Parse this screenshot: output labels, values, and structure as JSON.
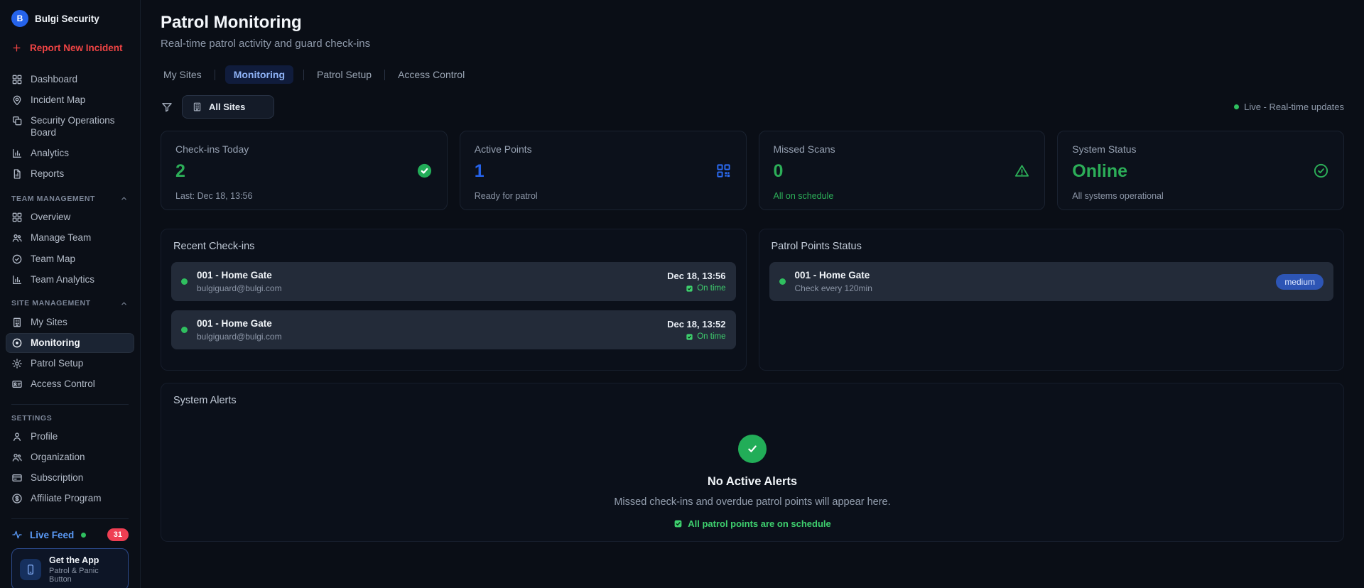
{
  "brand": {
    "name": "Bulgi Security",
    "initial": "B",
    "logo_color": "#2563eb"
  },
  "sidebar": {
    "report_button": {
      "label": "Report New Incident",
      "icon": "plus"
    },
    "primary_nav": [
      {
        "label": "Dashboard",
        "icon": "grid"
      },
      {
        "label": "Incident Map",
        "icon": "map-pin"
      },
      {
        "label": "Security Operations Board",
        "icon": "board"
      },
      {
        "label": "Analytics",
        "icon": "bar-chart"
      },
      {
        "label": "Reports",
        "icon": "file-chart"
      }
    ],
    "sections": [
      {
        "label": "TEAM MANAGEMENT",
        "collapsible": true,
        "items": [
          {
            "label": "Overview",
            "icon": "grid"
          },
          {
            "label": "Manage Team",
            "icon": "users"
          },
          {
            "label": "Team Map",
            "icon": "badge-check"
          },
          {
            "label": "Team Analytics",
            "icon": "bar-chart"
          }
        ]
      },
      {
        "label": "SITE MANAGEMENT",
        "collapsible": true,
        "divider_before": false,
        "items": [
          {
            "label": "My Sites",
            "icon": "building"
          },
          {
            "label": "Monitoring",
            "icon": "target",
            "active": true
          },
          {
            "label": "Patrol Setup",
            "icon": "gear"
          },
          {
            "label": "Access Control",
            "icon": "id-card"
          }
        ]
      },
      {
        "label": "SETTINGS",
        "collapsible": false,
        "divider_before": true,
        "items": [
          {
            "label": "Profile",
            "icon": "user"
          },
          {
            "label": "Organization",
            "icon": "users"
          },
          {
            "label": "Subscription",
            "icon": "credit-card"
          },
          {
            "label": "Affiliate Program",
            "icon": "dollar-circle"
          }
        ]
      }
    ],
    "live_feed": {
      "label": "Live Feed",
      "badge": "31",
      "icon": "activity",
      "badge_color": "#ef3f53"
    },
    "get_app": {
      "title": "Get the App",
      "subtitle": "Patrol & Panic Button",
      "icon": "smartphone"
    }
  },
  "header": {
    "title": "Patrol Monitoring",
    "subtitle": "Real-time patrol activity and guard check-ins",
    "tabs": [
      {
        "label": "My Sites"
      },
      {
        "label": "Monitoring",
        "active": true
      },
      {
        "label": "Patrol Setup"
      },
      {
        "label": "Access Control"
      }
    ]
  },
  "toolbar": {
    "site_filter": {
      "label": "All Sites",
      "icon": "building"
    },
    "live_status": "Live - Real-time updates"
  },
  "stats": [
    {
      "title": "Check-ins Today",
      "value": "2",
      "value_color": "#2cae58",
      "subtitle": "Last: Dec 18, 13:56",
      "subtitle_color": "#8b95a6",
      "icon": "check-circle-filled",
      "icon_color": "#22ad58"
    },
    {
      "title": "Active Points",
      "value": "1",
      "value_color": "#2563eb",
      "subtitle": "Ready for patrol",
      "subtitle_color": "#8b95a6",
      "icon": "qr-code",
      "icon_color": "#2b6bf3"
    },
    {
      "title": "Missed Scans",
      "value": "0",
      "value_color": "#2cae58",
      "subtitle": "All on schedule",
      "subtitle_color": "#2cae58",
      "icon": "warning-triangle",
      "icon_color": "#2cae58"
    },
    {
      "title": "System Status",
      "value": "Online",
      "value_color": "#2cae58",
      "subtitle": "All systems operational",
      "subtitle_color": "#8b95a6",
      "icon": "check-circle-outline",
      "icon_color": "#2cae58"
    }
  ],
  "recent_checkins": {
    "title": "Recent Check-ins",
    "items": [
      {
        "name": "001 - Home Gate",
        "email": "bulgiguard@bulgi.com",
        "time": "Dec 18, 13:56",
        "status": "On time"
      },
      {
        "name": "001 - Home Gate",
        "email": "bulgiguard@bulgi.com",
        "time": "Dec 18, 13:52",
        "status": "On time"
      }
    ]
  },
  "patrol_points": {
    "title": "Patrol Points Status",
    "items": [
      {
        "name": "001 - Home Gate",
        "schedule": "Check every 120min",
        "priority": "medium"
      }
    ]
  },
  "system_alerts": {
    "title": "System Alerts",
    "empty_title": "No Active Alerts",
    "empty_description": "Missed check-ins and overdue patrol points will appear here.",
    "footer_note": "All patrol points are on schedule"
  }
}
